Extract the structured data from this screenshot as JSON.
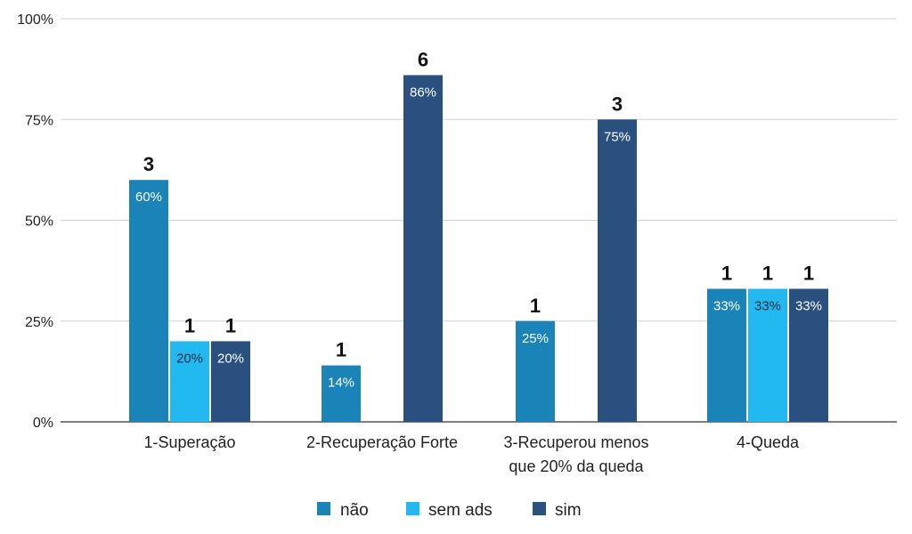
{
  "chart_data": {
    "type": "bar",
    "categories": [
      [
        "1-Superação"
      ],
      [
        "2-Recuperação Forte"
      ],
      [
        "3-Recuperou menos",
        "que 20% da queda"
      ],
      [
        "4-Queda"
      ]
    ],
    "series": [
      {
        "name": "não",
        "color": "#1a83b8",
        "values": [
          60,
          14,
          25,
          33
        ],
        "value_labels": [
          "60%",
          "14%",
          "25%",
          "33%"
        ],
        "counts": [
          "3",
          "1",
          "1",
          "1"
        ]
      },
      {
        "name": "sem ads",
        "color": "#22b8f0",
        "values": [
          20,
          null,
          null,
          33
        ],
        "value_labels": [
          "20%",
          "",
          "",
          "33%"
        ],
        "counts": [
          "1",
          "",
          "",
          "1"
        ]
      },
      {
        "name": "sim",
        "color": "#2a5080",
        "values": [
          20,
          86,
          75,
          33
        ],
        "value_labels": [
          "20%",
          "86%",
          "75%",
          "33%"
        ],
        "counts": [
          "1",
          "6",
          "3",
          "1"
        ]
      }
    ],
    "y_ticks": [
      "0%",
      "25%",
      "50%",
      "75%",
      "100%"
    ],
    "ylim": [
      0,
      100
    ],
    "grid": true,
    "legend_position": "bottom-center"
  }
}
